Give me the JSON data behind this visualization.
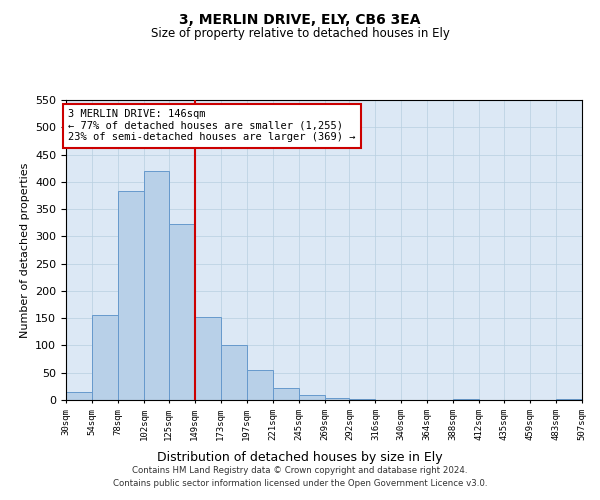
{
  "title": "3, MERLIN DRIVE, ELY, CB6 3EA",
  "subtitle": "Size of property relative to detached houses in Ely",
  "xlabel": "Distribution of detached houses by size in Ely",
  "ylabel": "Number of detached properties",
  "bar_edges": [
    30,
    54,
    78,
    102,
    125,
    149,
    173,
    197,
    221,
    245,
    269,
    292,
    316,
    340,
    364,
    388,
    412,
    435,
    459,
    483,
    507
  ],
  "bar_heights": [
    15,
    155,
    383,
    420,
    323,
    153,
    100,
    55,
    22,
    10,
    3,
    1,
    0,
    0,
    0,
    1,
    0,
    0,
    0,
    1
  ],
  "bar_color": "#b8d0e8",
  "bar_edgecolor": "#6699cc",
  "vline_x": 149,
  "vline_color": "#cc0000",
  "annotation_box_text": "3 MERLIN DRIVE: 146sqm\n← 77% of detached houses are smaller (1,255)\n23% of semi-detached houses are larger (369) →",
  "annotation_box_color": "#cc0000",
  "annotation_box_bg": "#ffffff",
  "ylim": [
    0,
    550
  ],
  "tick_labels": [
    "30sqm",
    "54sqm",
    "78sqm",
    "102sqm",
    "125sqm",
    "149sqm",
    "173sqm",
    "197sqm",
    "221sqm",
    "245sqm",
    "269sqm",
    "292sqm",
    "316sqm",
    "340sqm",
    "364sqm",
    "388sqm",
    "412sqm",
    "435sqm",
    "459sqm",
    "483sqm",
    "507sqm"
  ],
  "footnote": "Contains HM Land Registry data © Crown copyright and database right 2024.\nContains public sector information licensed under the Open Government Licence v3.0.",
  "background_color": "#ffffff",
  "plot_bg_color": "#dce8f5",
  "grid_color": "#b8cfe0"
}
